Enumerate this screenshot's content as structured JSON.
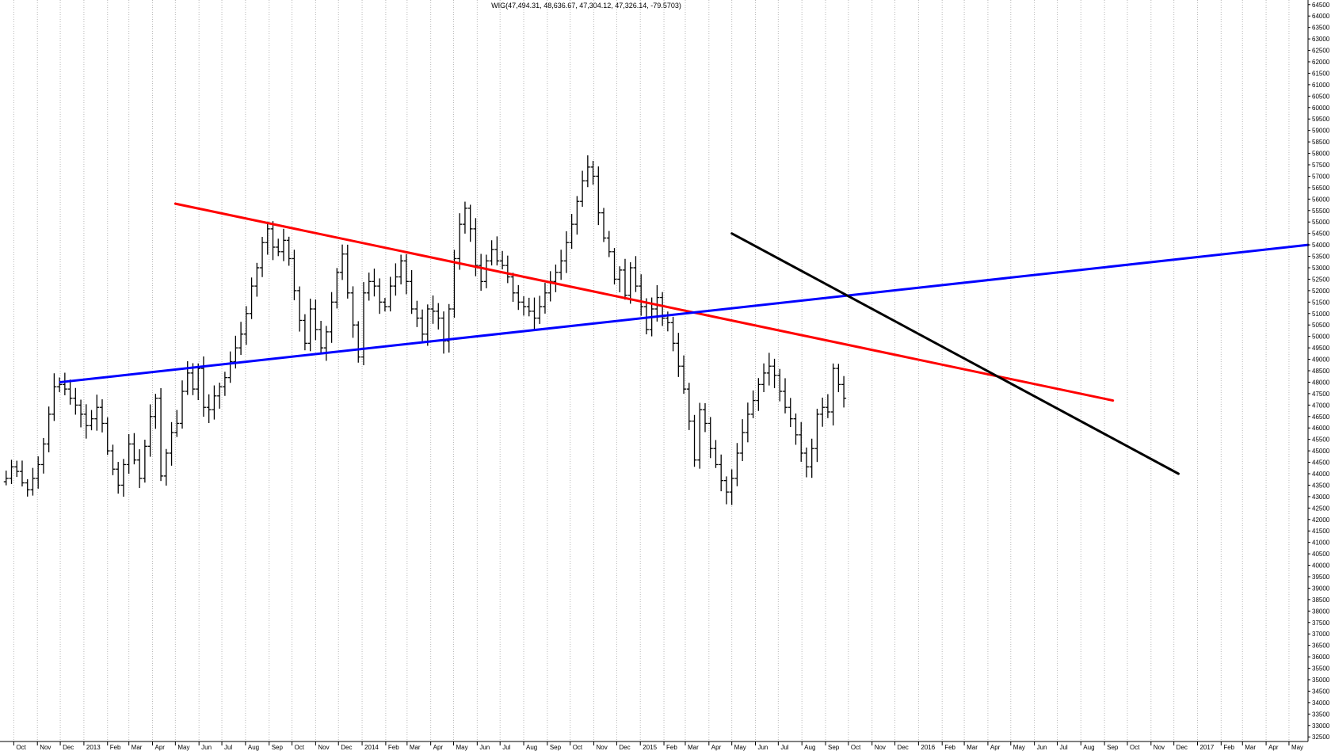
{
  "chart_data": {
    "type": "ohlc",
    "title": "WIG(47,494.31, 48,636.67, 47,304.12, 47,326.14, -79.5703)",
    "ylim": [
      32300,
      64700
    ],
    "y_tick_start": 32500,
    "y_tick_end": 64500,
    "y_tick_step": 500,
    "grid": "vertical dotted",
    "x_axis": {
      "start": "2012-09-15",
      "end": "2017-05-26",
      "labels": [
        {
          "date": "2012-10-01",
          "text": "Oct"
        },
        {
          "date": "2012-11-01",
          "text": "Nov"
        },
        {
          "date": "2012-12-01",
          "text": "Dec"
        },
        {
          "date": "2013-01-01",
          "text": "2013"
        },
        {
          "date": "2013-02-01",
          "text": "Feb"
        },
        {
          "date": "2013-03-01",
          "text": "Mar"
        },
        {
          "date": "2013-04-01",
          "text": "Apr"
        },
        {
          "date": "2013-05-01",
          "text": "May"
        },
        {
          "date": "2013-06-01",
          "text": "Jun"
        },
        {
          "date": "2013-07-01",
          "text": "Jul"
        },
        {
          "date": "2013-08-01",
          "text": "Aug"
        },
        {
          "date": "2013-09-01",
          "text": "Sep"
        },
        {
          "date": "2013-10-01",
          "text": "Oct"
        },
        {
          "date": "2013-11-01",
          "text": "Nov"
        },
        {
          "date": "2013-12-01",
          "text": "Dec"
        },
        {
          "date": "2014-01-01",
          "text": "2014"
        },
        {
          "date": "2014-02-01",
          "text": "Feb"
        },
        {
          "date": "2014-03-01",
          "text": "Mar"
        },
        {
          "date": "2014-04-01",
          "text": "Apr"
        },
        {
          "date": "2014-05-01",
          "text": "May"
        },
        {
          "date": "2014-06-01",
          "text": "Jun"
        },
        {
          "date": "2014-07-01",
          "text": "Jul"
        },
        {
          "date": "2014-08-01",
          "text": "Aug"
        },
        {
          "date": "2014-09-01",
          "text": "Sep"
        },
        {
          "date": "2014-10-01",
          "text": "Oct"
        },
        {
          "date": "2014-11-01",
          "text": "Nov"
        },
        {
          "date": "2014-12-01",
          "text": "Dec"
        },
        {
          "date": "2015-01-01",
          "text": "2015"
        },
        {
          "date": "2015-02-01",
          "text": "Feb"
        },
        {
          "date": "2015-03-01",
          "text": "Mar"
        },
        {
          "date": "2015-04-01",
          "text": "Apr"
        },
        {
          "date": "2015-05-01",
          "text": "May"
        },
        {
          "date": "2015-06-01",
          "text": "Jun"
        },
        {
          "date": "2015-07-01",
          "text": "Jul"
        },
        {
          "date": "2015-08-01",
          "text": "Aug"
        },
        {
          "date": "2015-09-01",
          "text": "Sep"
        },
        {
          "date": "2015-10-01",
          "text": "Oct"
        },
        {
          "date": "2015-11-01",
          "text": "Nov"
        },
        {
          "date": "2015-12-01",
          "text": "Dec"
        },
        {
          "date": "2016-01-01",
          "text": "2016"
        },
        {
          "date": "2016-02-01",
          "text": "Feb"
        },
        {
          "date": "2016-03-01",
          "text": "Mar"
        },
        {
          "date": "2016-04-01",
          "text": "Apr"
        },
        {
          "date": "2016-05-01",
          "text": "May"
        },
        {
          "date": "2016-06-01",
          "text": "Jun"
        },
        {
          "date": "2016-07-01",
          "text": "Jul"
        },
        {
          "date": "2016-08-01",
          "text": "Aug"
        },
        {
          "date": "2016-09-01",
          "text": "Sep"
        },
        {
          "date": "2016-10-01",
          "text": "Oct"
        },
        {
          "date": "2016-11-01",
          "text": "Nov"
        },
        {
          "date": "2016-12-01",
          "text": "Dec"
        },
        {
          "date": "2017-01-01",
          "text": "2017"
        },
        {
          "date": "2017-02-01",
          "text": "Feb"
        },
        {
          "date": "2017-03-01",
          "text": "Mar"
        },
        {
          "date": "2017-04-01",
          "text": "Apr"
        },
        {
          "date": "2017-05-01",
          "text": "May"
        }
      ]
    },
    "weekly_closes_start": "2012-09-21",
    "weekly_closes": [
      43800,
      44300,
      44100,
      43600,
      43300,
      43800,
      44400,
      45300,
      46600,
      47800,
      47900,
      47700,
      47300,
      47000,
      46600,
      46100,
      46400,
      46900,
      46200,
      45000,
      44200,
      43500,
      44400,
      45300,
      44600,
      43800,
      45200,
      46500,
      47300,
      43900,
      44900,
      45800,
      46200,
      47600,
      48400,
      47700,
      48600,
      46900,
      46800,
      47400,
      47800,
      48200,
      48900,
      49500,
      50100,
      51000,
      52200,
      53000,
      54100,
      54700,
      53900,
      53700,
      54200,
      53400,
      52000,
      50700,
      49700,
      51200,
      50300,
      49500,
      50200,
      51500,
      52800,
      53600,
      51900,
      50500,
      49100,
      51900,
      52400,
      52200,
      51500,
      51300,
      52200,
      52600,
      53300,
      52400,
      51200,
      50800,
      50100,
      51200,
      51100,
      50800,
      49800,
      51200,
      53400,
      54900,
      55600,
      54700,
      53100,
      52400,
      53300,
      53800,
      53300,
      53100,
      52600,
      51900,
      51500,
      51300,
      51100,
      50800,
      51300,
      51900,
      52400,
      52800,
      53300,
      54100,
      54900,
      55900,
      56800,
      57400,
      57000,
      55400,
      54300,
      53700,
      52500,
      52900,
      51800,
      53000,
      52200,
      51300,
      50300,
      51200,
      51700,
      50800,
      50600,
      49700,
      48700,
      47700,
      46300,
      44600,
      46800,
      46200,
      45100,
      44400,
      43700,
      43200,
      43800,
      44900,
      45800,
      46600,
      47200,
      47900,
      48400,
      48700,
      48300,
      47600,
      46900,
      46400,
      45700,
      44900,
      44300,
      45100,
      46600,
      46900,
      46700,
      48600,
      47900,
      47300
    ],
    "trendlines": [
      {
        "color": "#ff0000",
        "from": {
          "date": "2013-05-01",
          "value": 55800
        },
        "to": {
          "date": "2016-09-12",
          "value": 47200
        }
      },
      {
        "color": "#0000ff",
        "from": {
          "date": "2012-12-01",
          "value": 48000
        },
        "to": {
          "date": "2017-05-26",
          "value": 54000
        }
      },
      {
        "color": "#000000",
        "from": {
          "date": "2015-05-01",
          "value": 54500
        },
        "to": {
          "date": "2016-12-07",
          "value": 44000
        }
      }
    ]
  }
}
